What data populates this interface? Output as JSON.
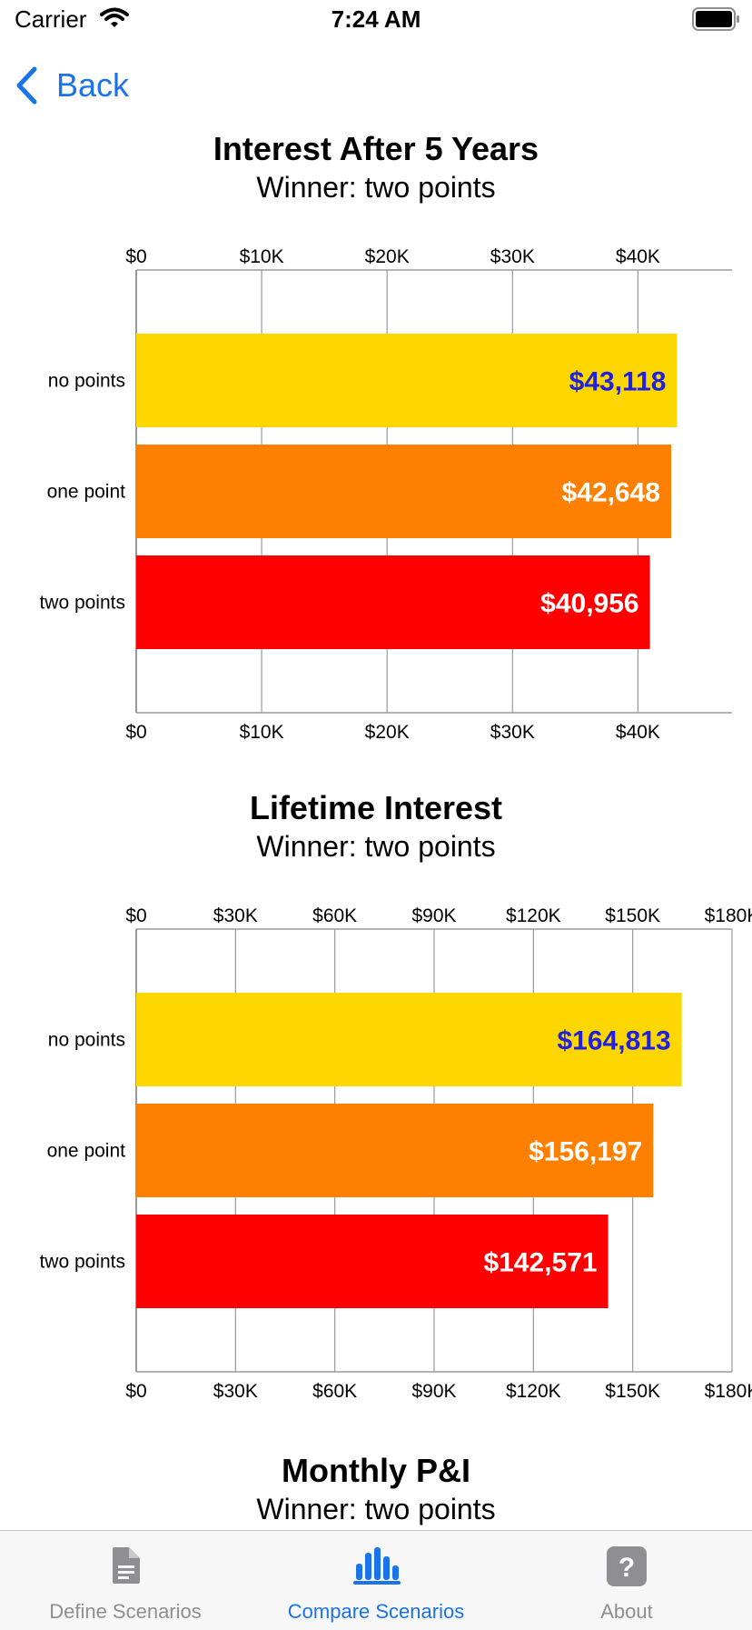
{
  "status": {
    "carrier": "Carrier",
    "time": "7:24 AM"
  },
  "nav": {
    "back_label": "Back"
  },
  "colors": {
    "accent": "#1a73e8",
    "no_points": "#FFD700",
    "one_point": "#FF7F00",
    "two_points": "#FF0000",
    "label_on_yellow": "#2020e0",
    "label_on_dark": "#ffffff"
  },
  "charts": [
    {
      "title": "Interest After 5 Years",
      "subtitle": "Winner: two points"
    },
    {
      "title": "Lifetime Interest",
      "subtitle": "Winner: two points"
    },
    {
      "title": "Monthly P&I",
      "subtitle": "Winner: two points"
    }
  ],
  "chart_data": [
    {
      "type": "bar",
      "orientation": "horizontal",
      "title": "Interest After 5 Years",
      "subtitle": "Winner: two points",
      "categories": [
        "no points",
        "one point",
        "two points"
      ],
      "values": [
        43118,
        42648,
        40956
      ],
      "value_labels": [
        "$43,118",
        "$42,648",
        "$40,956"
      ],
      "ticks": [
        0,
        10000,
        20000,
        30000,
        40000
      ],
      "tick_labels": [
        "$0",
        "$10K",
        "$20K",
        "$30K",
        "$40K"
      ],
      "xlim": [
        0,
        47500
      ],
      "grid": true
    },
    {
      "type": "bar",
      "orientation": "horizontal",
      "title": "Lifetime Interest",
      "subtitle": "Winner: two points",
      "categories": [
        "no points",
        "one point",
        "two points"
      ],
      "values": [
        164813,
        156197,
        142571
      ],
      "value_labels": [
        "$164,813",
        "$156,197",
        "$142,571"
      ],
      "ticks": [
        0,
        30000,
        60000,
        90000,
        120000,
        150000,
        180000
      ],
      "tick_labels": [
        "$0",
        "$30K",
        "$60K",
        "$90K",
        "$120K",
        "$150K",
        "$180K"
      ],
      "xlim": [
        0,
        180000
      ],
      "grid": true
    }
  ],
  "tabs": [
    {
      "label": "Define Scenarios",
      "icon": "document-icon",
      "active": false
    },
    {
      "label": "Compare Scenarios",
      "icon": "bar-chart-icon",
      "active": true
    },
    {
      "label": "About",
      "icon": "question-icon",
      "active": false
    }
  ]
}
